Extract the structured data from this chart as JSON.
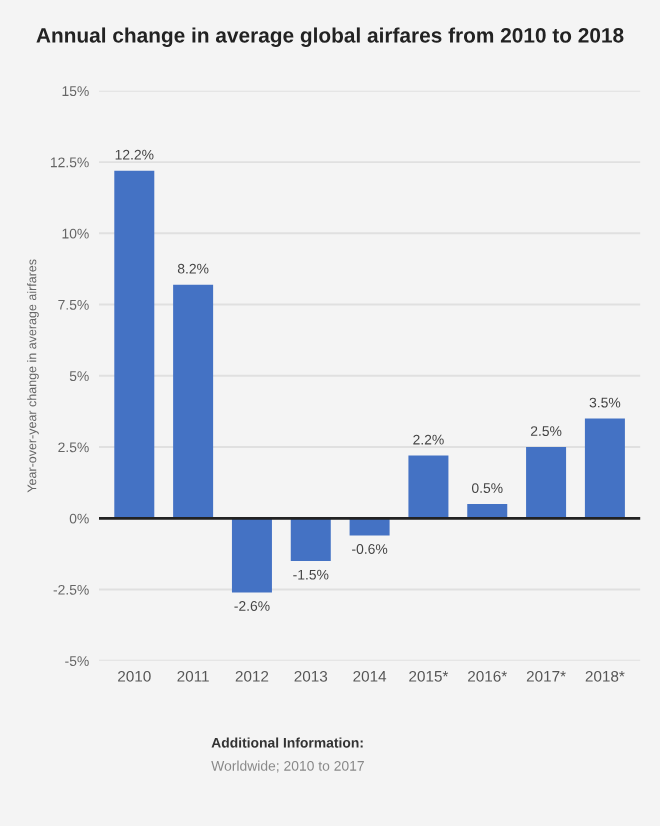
{
  "chart_data": {
    "type": "bar",
    "title": "Annual change in average global airfares from 2010 to 2018",
    "ylabel": "Year-over-year change in average airfares",
    "categories": [
      "2010",
      "2011",
      "2012",
      "2013",
      "2014",
      "2015*",
      "2016*",
      "2017*",
      "2018*"
    ],
    "values": [
      12.2,
      8.2,
      -2.6,
      -1.5,
      -0.6,
      2.2,
      0.5,
      2.5,
      3.5
    ],
    "value_labels": [
      "12.2%",
      "8.2%",
      "-2.6%",
      "-1.5%",
      "-0.6%",
      "2.2%",
      "0.5%",
      "2.5%",
      "3.5%"
    ],
    "color": "#4472c4",
    "ylim": [
      -5,
      15
    ],
    "yticks": [
      {
        "value": -5,
        "label": "-5%"
      },
      {
        "value": -2.5,
        "label": "-2.5%"
      },
      {
        "value": 0,
        "label": "0%"
      },
      {
        "value": 2.5,
        "label": "2.5%"
      },
      {
        "value": 5,
        "label": "5%"
      },
      {
        "value": 7.5,
        "label": "7.5%"
      },
      {
        "value": 10,
        "label": "10%"
      },
      {
        "value": 12.5,
        "label": "12.5%"
      },
      {
        "value": 15,
        "label": "15%"
      }
    ],
    "grid": "y",
    "annotations": [
      "Additional Information:",
      "Worldwide; 2010 to 2017"
    ]
  }
}
